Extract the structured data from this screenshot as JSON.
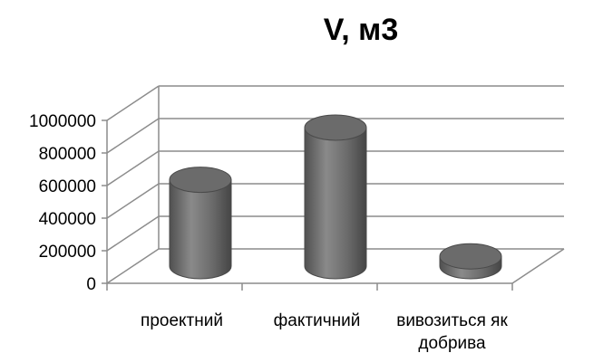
{
  "chart_data": {
    "type": "bar",
    "style": "3d-cylinder",
    "title": "V, м3",
    "xlabel": "",
    "ylabel": "",
    "ylim": [
      0,
      1000000
    ],
    "yticks": [
      0,
      200000,
      400000,
      600000,
      800000,
      1000000
    ],
    "ytick_labels": [
      "0",
      "200000",
      "400000",
      "600000",
      "800000",
      "1000000"
    ],
    "grid": true,
    "legend": "none",
    "categories": [
      "проектний",
      "фактичний",
      "вивозиться як добрива"
    ],
    "category_lines": [
      [
        "проектний"
      ],
      [
        "фактичний"
      ],
      [
        "вивозиться як",
        "добрива"
      ]
    ],
    "values": [
      530000,
      850000,
      60000
    ],
    "colors": {
      "bar": "#6b6b6b",
      "bar_light": "#9a9a9a",
      "bar_dark": "#4a4a4a",
      "grid": "#8c8c8c"
    }
  }
}
